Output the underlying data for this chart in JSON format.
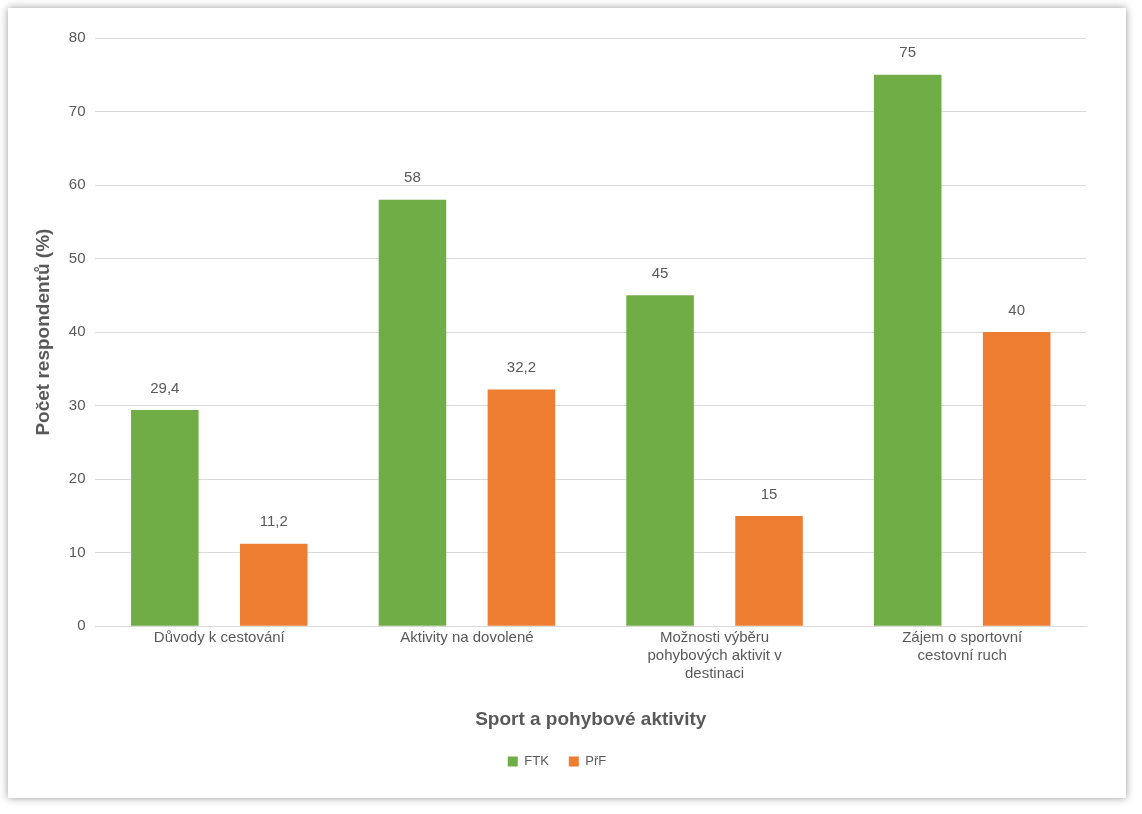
{
  "chart_data": {
    "type": "bar",
    "xlabel": "Sport a pohybové aktivity",
    "ylabel": "Počet respondentů (%)",
    "categories": [
      "Důvody k cestování",
      "Aktivity na dovolené",
      "Možnosti výběru pohybových aktivit v destinaci",
      "Zájem o sportovní cestovní ruch"
    ],
    "series": [
      {
        "name": "FTK",
        "color": "#70ad47",
        "values": [
          29.4,
          58,
          45,
          75
        ],
        "value_labels": [
          "29,4",
          "58",
          "45",
          "75"
        ]
      },
      {
        "name": "PřF",
        "color": "#ed7d31",
        "values": [
          11.2,
          32.2,
          15,
          40
        ],
        "value_labels": [
          "11,2",
          "32,2",
          "15",
          "40"
        ]
      }
    ],
    "ylim": [
      0,
      80
    ],
    "yticks": [
      0,
      10,
      20,
      30,
      40,
      50,
      60,
      70,
      80
    ],
    "grid": "y",
    "legend": "bottom"
  }
}
